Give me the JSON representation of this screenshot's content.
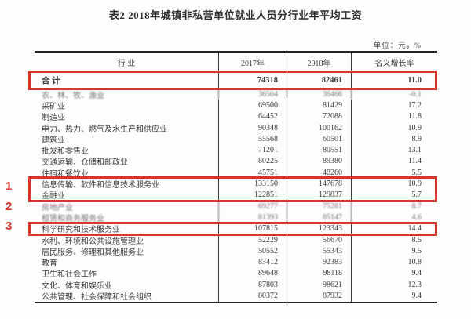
{
  "title": "表2 2018年城镇非私营单位就业人员分行业年平均工资",
  "unit_label": "单位：元，%",
  "colors": {
    "highlight_red": "#d6352c",
    "table_border": "#242424",
    "text": "#3b3b3b"
  },
  "table": {
    "columns": [
      "行  业",
      "2017年",
      "2018年",
      "名义增长率"
    ],
    "rows": [
      {
        "industry": "合  计",
        "y2017": "74318",
        "y2018": "82461",
        "growth": "11.0",
        "total": true,
        "highlight": "box-total"
      },
      {
        "industry": "农、林、牧、渔业",
        "y2017": "36504",
        "y2018": "36466",
        "growth": "-0.1",
        "blurred": true
      },
      {
        "industry": "采矿业",
        "y2017": "69500",
        "y2018": "81429",
        "growth": "17.2"
      },
      {
        "industry": "制造业",
        "y2017": "64452",
        "y2018": "72088",
        "growth": "11.8"
      },
      {
        "industry": "电力、热力、燃气及水生产和供应业",
        "y2017": "90348",
        "y2018": "100162",
        "growth": "10.9"
      },
      {
        "industry": "建筑业",
        "y2017": "55568",
        "y2018": "60501",
        "growth": "8.9"
      },
      {
        "industry": "批发和零售业",
        "y2017": "71201",
        "y2018": "80551",
        "growth": "13.1"
      },
      {
        "industry": "交通运输、仓储和邮政业",
        "y2017": "80225",
        "y2018": "89380",
        "growth": "11.4"
      },
      {
        "industry": "住宿和餐饮业",
        "y2017": "45751",
        "y2018": "48260",
        "growth": "5.5"
      },
      {
        "industry": "信息传输、软件和信息技术服务业",
        "y2017": "133150",
        "y2018": "147678",
        "growth": "10.9",
        "highlight": "box-it-finance"
      },
      {
        "industry": "金融业",
        "y2017": "122851",
        "y2018": "129837",
        "growth": "5.7",
        "highlight": "box-it-finance"
      },
      {
        "industry": "房地产业",
        "y2017": "69277",
        "y2018": "75281",
        "growth": "8.7",
        "blurred": true
      },
      {
        "industry": "租赁和商务服务业",
        "y2017": "81393",
        "y2018": "85147",
        "growth": "4.6",
        "blurred": true
      },
      {
        "industry": "科学研究和技术服务业",
        "y2017": "107815",
        "y2018": "123343",
        "growth": "14.4",
        "highlight": "box-research"
      },
      {
        "industry": "水利、环境和公共设施管理业",
        "y2017": "52229",
        "y2018": "56670",
        "growth": "8.5"
      },
      {
        "industry": "居民服务、修理和其他服务业",
        "y2017": "50552",
        "y2018": "55343",
        "growth": "9.5"
      },
      {
        "industry": "教育",
        "y2017": "83412",
        "y2018": "92383",
        "growth": "10.8"
      },
      {
        "industry": "卫生和社会工作",
        "y2017": "89648",
        "y2018": "98118",
        "growth": "9.4"
      },
      {
        "industry": "文化、体育和娱乐业",
        "y2017": "87803",
        "y2018": "98621",
        "growth": "12.3"
      },
      {
        "industry": "公共管理、社会保障和社会组织",
        "y2017": "80372",
        "y2018": "87932",
        "growth": "9.4"
      }
    ]
  },
  "annotations": {
    "markers": [
      "1",
      "2",
      "3"
    ]
  }
}
